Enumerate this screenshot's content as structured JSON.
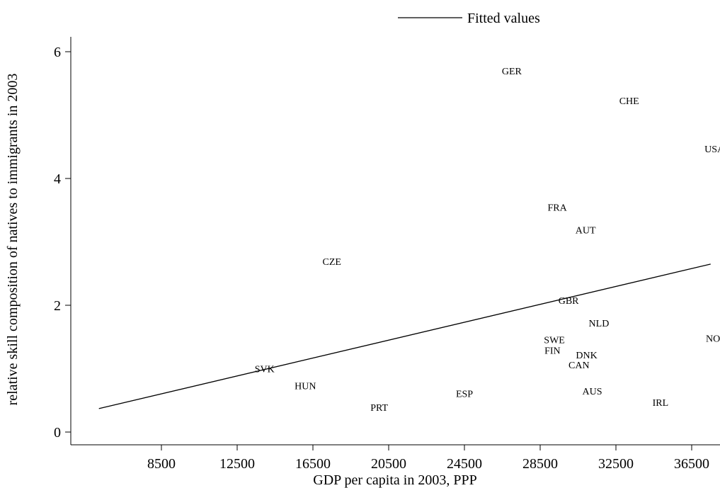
{
  "chart_data": {
    "type": "scatter",
    "title": "",
    "xlabel": "GDP per capita in 2003, PPP",
    "ylabel": "relative skill composition of natives to immigrants in 2003",
    "xlim": [
      4500,
      38000
    ],
    "ylim": [
      -0.15,
      6.25
    ],
    "x_ticks": [
      8500,
      12500,
      16500,
      20500,
      24500,
      28500,
      32500,
      36500
    ],
    "y_ticks": [
      0,
      2,
      4,
      6
    ],
    "grid": false,
    "legend": {
      "position": "top",
      "entries": [
        "Fitted values"
      ]
    },
    "points": [
      {
        "label": "GER",
        "x": 27000,
        "y": 5.7
      },
      {
        "label": "CHE",
        "x": 33200,
        "y": 5.23
      },
      {
        "label": "USA",
        "x": 37700,
        "y": 4.47
      },
      {
        "label": "FRA",
        "x": 29400,
        "y": 3.55
      },
      {
        "label": "AUT",
        "x": 30900,
        "y": 3.19
      },
      {
        "label": "CZE",
        "x": 17500,
        "y": 2.69
      },
      {
        "label": "GBR",
        "x": 30000,
        "y": 2.08
      },
      {
        "label": "NLD",
        "x": 31600,
        "y": 1.72
      },
      {
        "label": "SWE",
        "x": 29250,
        "y": 1.46
      },
      {
        "label": "NOR",
        "x": 37800,
        "y": 1.48
      },
      {
        "label": "FIN",
        "x": 29150,
        "y": 1.29
      },
      {
        "label": "DNK",
        "x": 30950,
        "y": 1.22
      },
      {
        "label": "CAN",
        "x": 30550,
        "y": 1.06
      },
      {
        "label": "SVK",
        "x": 13950,
        "y": 1.0
      },
      {
        "label": "HUN",
        "x": 16100,
        "y": 0.73
      },
      {
        "label": "AUS",
        "x": 31250,
        "y": 0.65
      },
      {
        "label": "ESP",
        "x": 24500,
        "y": 0.61
      },
      {
        "label": "IRL",
        "x": 34850,
        "y": 0.47
      },
      {
        "label": "PRT",
        "x": 20000,
        "y": 0.39
      }
    ],
    "fitted_line": {
      "name": "Fitted values",
      "x": [
        5200,
        37500
      ],
      "y": [
        0.37,
        2.65
      ]
    }
  }
}
